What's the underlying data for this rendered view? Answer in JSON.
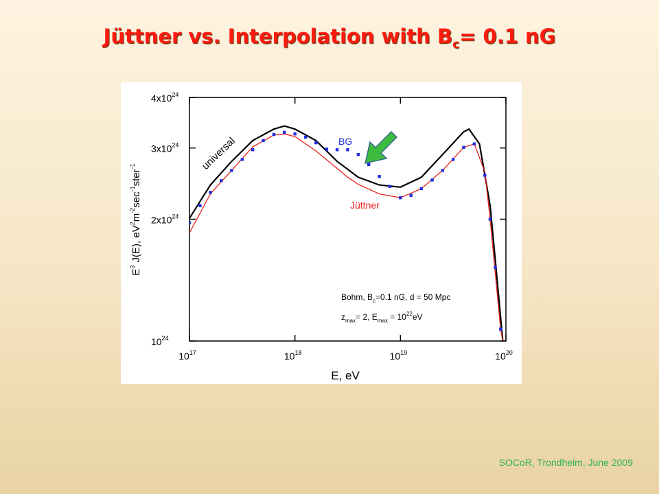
{
  "title": {
    "text": "Jüttner vs. Interpolation with B",
    "subscript": "c",
    "suffix": "= 0.1 nG"
  },
  "footer": "SOCoR, Trondheim, June 2009",
  "chart_data": {
    "type": "line",
    "xscale": "log",
    "yscale": "log",
    "xlabel": "E, eV",
    "ylabel": [
      "E",
      "3",
      " J(E),  eV",
      "2",
      "m",
      "-2",
      "sec",
      "-1",
      "ster",
      "-1"
    ],
    "xlim": [
      1e+17,
      1e+20
    ],
    "ylim": [
      1e+24,
      4e+24
    ],
    "xticks": [
      {
        "value": 1e+17,
        "label": "10",
        "exponent": "17"
      },
      {
        "value": 1e+18,
        "label": "10",
        "exponent": "18"
      },
      {
        "value": 1e+19,
        "label": "10",
        "exponent": "19"
      },
      {
        "value": 1e+20,
        "label": "10",
        "exponent": "20"
      }
    ],
    "yticks": [
      {
        "value": 1e+24,
        "label": "10",
        "exponent": "24"
      },
      {
        "value": 2e+24,
        "label": "2x10",
        "exponent": "24"
      },
      {
        "value": 3e+24,
        "label": "3x10",
        "exponent": "24"
      },
      {
        "value": 4e+24,
        "label": "4x10",
        "exponent": "24"
      }
    ],
    "series": [
      {
        "name": "universal",
        "color": "#000000",
        "style": "line",
        "x": [
          1e+17,
          1.58e+17,
          2.51e+17,
          3.98e+17,
          6.31e+17,
          7.94e+17,
          1e+18,
          1.58e+18,
          2.51e+18,
          3.98e+18,
          6.31e+18,
          1e+19,
          1.58e+19,
          2.51e+19,
          3.98e+19,
          4.47e+19,
          5.62e+19,
          7.08e+19,
          7.94e+19,
          9.33e+19
        ],
        "values": [
          2.01e+24,
          2.43e+24,
          2.78e+24,
          3.13e+24,
          3.34e+24,
          3.4e+24,
          3.34e+24,
          3.13e+24,
          2.78e+24,
          2.54e+24,
          2.43e+24,
          2.4e+24,
          2.54e+24,
          2.89e+24,
          3.29e+24,
          3.34e+24,
          3.07e+24,
          2.16e+24,
          1.58e+24,
          1e+24
        ]
      },
      {
        "name": "Jüttner",
        "color": "#e8201c",
        "style": "line",
        "x": [
          1e+17,
          1.58e+17,
          2.51e+17,
          3.98e+17,
          6.31e+17,
          7.94e+17,
          1e+18,
          1.58e+18,
          2.51e+18,
          3.16e+18,
          3.98e+18,
          6.31e+18,
          1e+19,
          1.58e+19,
          2.51e+19,
          3.98e+19,
          5.01e+19,
          6.31e+19,
          7.08e+19,
          7.94e+19,
          8.91e+19,
          9.33e+19
        ],
        "values": [
          1.85e+24,
          2.31e+24,
          2.64e+24,
          3.02e+24,
          3.23e+24,
          3.25e+24,
          3.2e+24,
          2.95e+24,
          2.67e+24,
          2.54e+24,
          2.44e+24,
          2.31e+24,
          2.26e+24,
          2.38e+24,
          2.64e+24,
          3.01e+24,
          3.07e+24,
          2.62e+24,
          2e+24,
          1.46e+24,
          1.07e+24,
          1e+24
        ]
      },
      {
        "name": "BG",
        "color": "#1f2fe0",
        "style": "markers",
        "x": [
          1e+17,
          1.26e+17,
          1.58e+17,
          2e+17,
          2.51e+17,
          3.16e+17,
          3.98e+17,
          5.01e+17,
          6.31e+17,
          7.94e+17,
          1e+18,
          1.26e+18,
          1.58e+18,
          2e+18,
          2.51e+18,
          3.16e+18,
          3.98e+18,
          5.01e+18,
          6.31e+18,
          7.94e+18,
          1e+19,
          1.26e+19,
          1.58e+19,
          2e+19,
          2.51e+19,
          3.16e+19,
          3.98e+19,
          5.01e+19,
          6.31e+19,
          7.08e+19,
          7.94e+19,
          8.91e+19
        ],
        "values": [
          1.96e+24,
          2.16e+24,
          2.33e+24,
          2.49e+24,
          2.64e+24,
          2.81e+24,
          2.97e+24,
          3.13e+24,
          3.24e+24,
          3.28e+24,
          3.25e+24,
          3.19e+24,
          3.09e+24,
          2.98e+24,
          2.97e+24,
          2.97e+24,
          2.89e+24,
          2.73e+24,
          2.55e+24,
          2.41e+24,
          2.26e+24,
          2.29e+24,
          2.38e+24,
          2.5e+24,
          2.64e+24,
          2.81e+24,
          3.01e+24,
          3.07e+24,
          2.57e+24,
          2e+24,
          1.52e+24,
          1.07e+24
        ]
      }
    ],
    "annotations": [
      [
        "Bohm,  B",
        "c",
        "=0.1 nG, d = 50 Mpc"
      ],
      [
        "z",
        "max",
        "= 2, E",
        "max",
        " = 10",
        "22",
        "eV"
      ]
    ]
  }
}
